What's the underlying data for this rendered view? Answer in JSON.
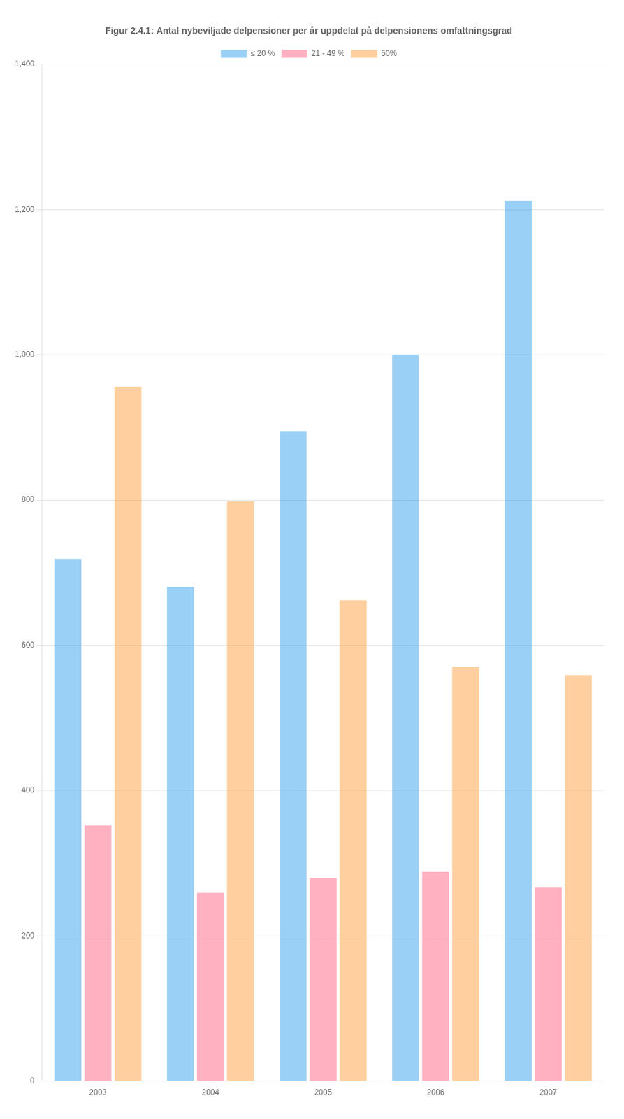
{
  "chart_data": {
    "type": "bar",
    "title": "Figur 2.4.1: Antal nybeviljade delpensioner per år uppdelat på delpensionens omfattningsgrad",
    "categories": [
      "2003",
      "2004",
      "2005",
      "2006",
      "2007"
    ],
    "series": [
      {
        "name": "≤ 20 %",
        "values": [
          719,
          680,
          895,
          1000,
          1212
        ]
      },
      {
        "name": "21 - 49 %",
        "values": [
          352,
          259,
          279,
          288,
          267
        ]
      },
      {
        "name": "50%",
        "values": [
          956,
          798,
          662,
          570,
          559
        ]
      }
    ],
    "ylim": [
      0,
      1400
    ],
    "yticks": [
      0,
      200,
      400,
      600,
      800,
      1000,
      1200,
      1400
    ],
    "grid": true,
    "legend": "top"
  }
}
